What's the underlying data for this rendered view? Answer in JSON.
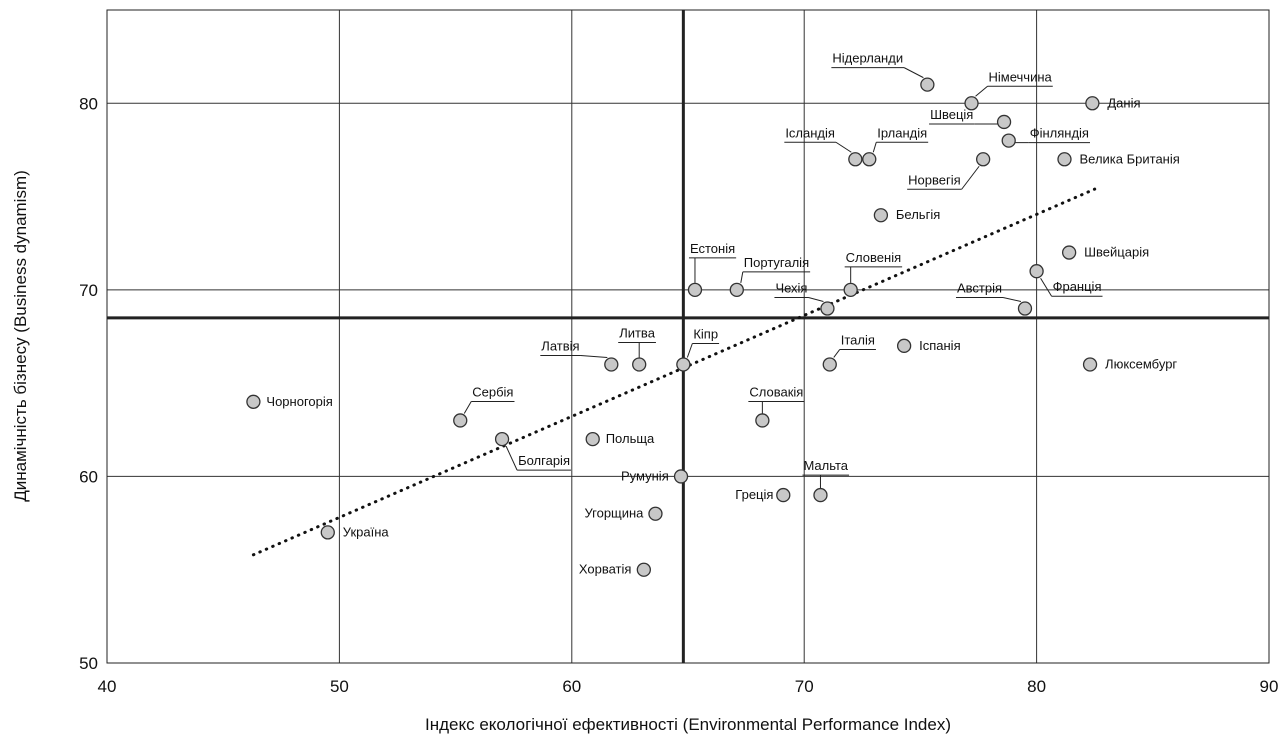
{
  "chart_data": {
    "type": "scatter",
    "xlabel": "Індекс екологічної ефективності  (Environmental Performance Index)",
    "ylabel": "Динамічність бізнесу (Business dynamism)",
    "xlim": [
      40,
      90
    ],
    "ylim": [
      50,
      85
    ],
    "xticks": [
      40,
      50,
      60,
      70,
      80,
      90
    ],
    "yticks": [
      50,
      60,
      70,
      80
    ],
    "grid": true,
    "reference_lines": {
      "x": 64.8,
      "y": 68.5
    },
    "trendline": {
      "from": [
        46.3,
        55.8
      ],
      "to": [
        82.5,
        75.4
      ],
      "style": "dotted"
    },
    "marker_color": "#c8c8c8",
    "points": [
      {
        "label": "Нідерланди",
        "x": 75.3,
        "y": 81,
        "underline": true
      },
      {
        "label": "Німеччина",
        "x": 77.2,
        "y": 80,
        "underline": true
      },
      {
        "label": "Данія",
        "x": 82.4,
        "y": 80,
        "underline": false
      },
      {
        "label": "Ісландія",
        "x": 72.2,
        "y": 77,
        "underline": true
      },
      {
        "label": "Ірландія",
        "x": 72.8,
        "y": 77,
        "underline": true
      },
      {
        "label": "Швеція",
        "x": 78.6,
        "y": 79,
        "underline": true
      },
      {
        "label": "Фінляндія",
        "x": 78.8,
        "y": 78,
        "underline": true
      },
      {
        "label": "Норвегія",
        "x": 77.7,
        "y": 77,
        "underline": true
      },
      {
        "label": "Велика Британія",
        "x": 81.2,
        "y": 77,
        "underline": false
      },
      {
        "label": "Бельгія",
        "x": 73.3,
        "y": 74,
        "underline": false
      },
      {
        "label": "Швейцарія",
        "x": 81.4,
        "y": 72,
        "underline": false
      },
      {
        "label": "Естонія",
        "x": 65.3,
        "y": 70,
        "underline": true
      },
      {
        "label": "Португалія",
        "x": 67.1,
        "y": 70,
        "underline": true
      },
      {
        "label": "Словенія",
        "x": 72.0,
        "y": 70,
        "underline": true
      },
      {
        "label": "Чехія",
        "x": 71.0,
        "y": 69,
        "underline": true
      },
      {
        "label": "Австрія",
        "x": 79.5,
        "y": 69,
        "underline": true
      },
      {
        "label": "Франція",
        "x": 80.0,
        "y": 71,
        "underline": true
      },
      {
        "label": "Латвія",
        "x": 61.7,
        "y": 66,
        "underline": true
      },
      {
        "label": "Литва",
        "x": 62.9,
        "y": 66,
        "underline": true
      },
      {
        "label": "Кіпр",
        "x": 64.8,
        "y": 66,
        "underline": true
      },
      {
        "label": "Італія",
        "x": 71.1,
        "y": 66,
        "underline": true
      },
      {
        "label": "Іспанія",
        "x": 74.3,
        "y": 67,
        "underline": false
      },
      {
        "label": "Люксембург",
        "x": 82.3,
        "y": 66,
        "underline": false
      },
      {
        "label": "Чорногорія",
        "x": 46.3,
        "y": 64,
        "underline": false
      },
      {
        "label": "Сербія",
        "x": 55.2,
        "y": 63,
        "underline": true
      },
      {
        "label": "Болгарія",
        "x": 57.0,
        "y": 62,
        "underline": true
      },
      {
        "label": "Польща",
        "x": 60.9,
        "y": 62,
        "underline": false
      },
      {
        "label": "Словакія",
        "x": 68.2,
        "y": 63,
        "underline": true
      },
      {
        "label": "Румунія",
        "x": 64.7,
        "y": 60,
        "underline": false
      },
      {
        "label": "Мальта",
        "x": 70.7,
        "y": 59,
        "underline": true
      },
      {
        "label": "Греція",
        "x": 69.1,
        "y": 59,
        "underline": false
      },
      {
        "label": "Угорщина",
        "x": 63.6,
        "y": 58,
        "underline": false
      },
      {
        "label": "Хорватія",
        "x": 63.1,
        "y": 55,
        "underline": false
      },
      {
        "label": "Україна",
        "x": 49.5,
        "y": 57,
        "underline": false
      }
    ]
  }
}
